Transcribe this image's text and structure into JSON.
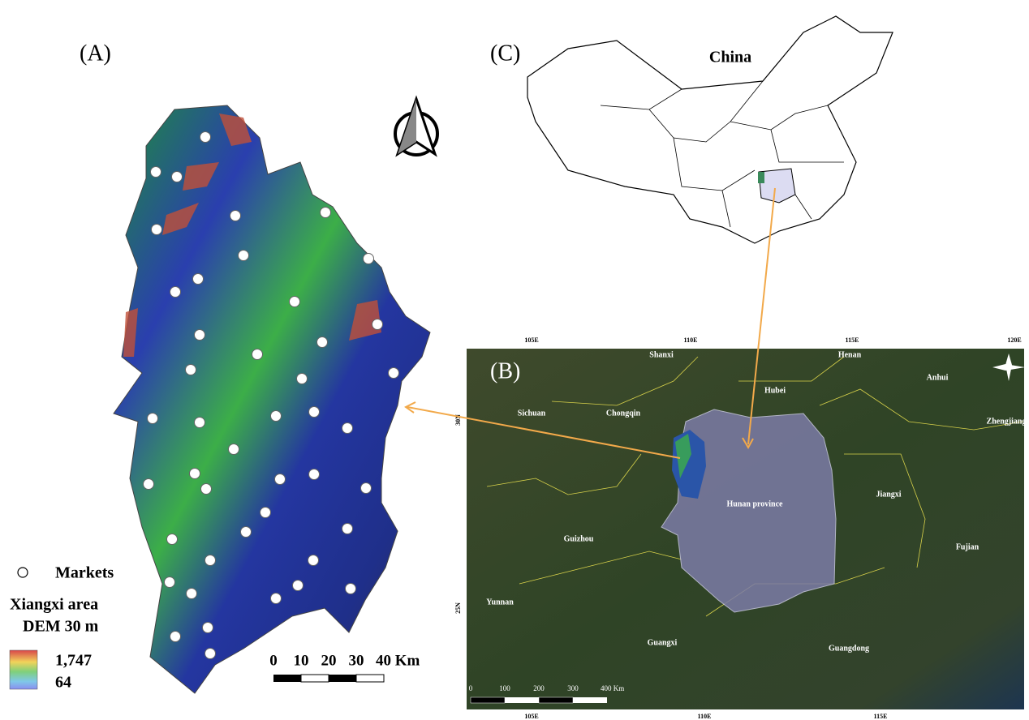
{
  "panels": {
    "a": {
      "label": "(A)",
      "legend": {
        "markets": "Markets",
        "title_line1": "Xiangxi area",
        "title_line2": "DEM 30 m",
        "max": "1,747",
        "min": "64"
      },
      "scale_bar": [
        "0",
        "10",
        "20",
        "30",
        "40 Km"
      ]
    },
    "b": {
      "label": "(B)",
      "top_ticks": [
        "105E",
        "110E",
        "115E",
        "120E"
      ],
      "bottom_ticks": [
        "105E",
        "110E",
        "115E"
      ],
      "lat_ticks": [
        "30N",
        "25N"
      ],
      "regions": [
        "Shanxi",
        "Henan",
        "Anhui",
        "Hubei",
        "Sichuan",
        "Chongqin",
        "Zhengjiang",
        "Hunan province",
        "Jiangxi",
        "Guizhou",
        "Fujian",
        "Yunnan",
        "Guangxi",
        "Guangdong"
      ],
      "scale_bar": [
        "0",
        "100",
        "200",
        "300",
        "400 Km"
      ]
    },
    "c": {
      "label": "(C)",
      "title": "China"
    }
  }
}
